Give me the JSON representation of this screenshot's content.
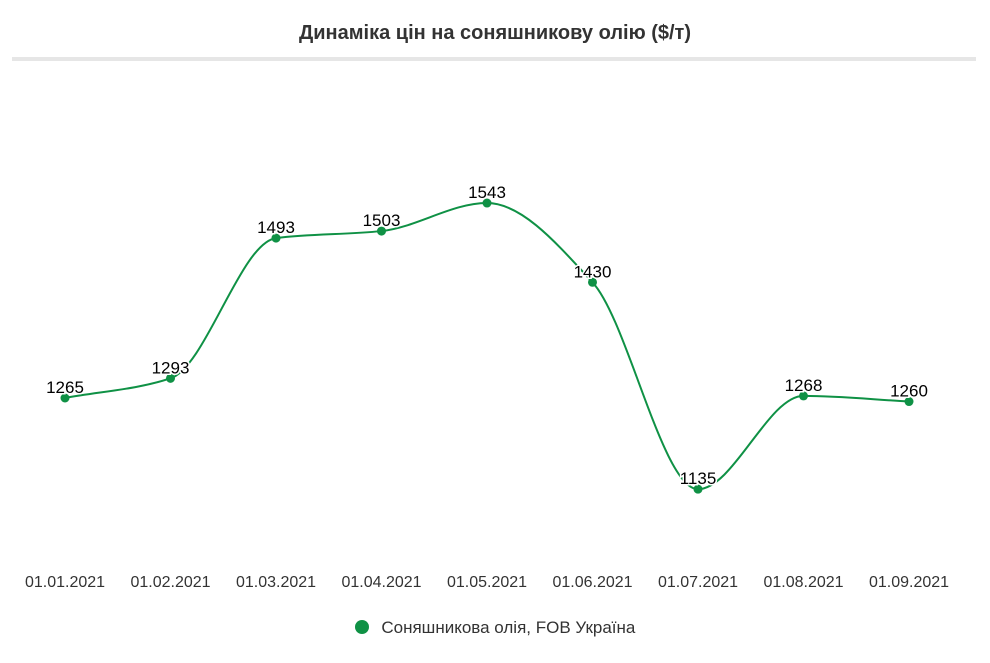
{
  "chart_data": {
    "type": "line",
    "title": "Динаміка цін на соняшникову олію ($/т)",
    "categories": [
      "01.01.2021",
      "01.02.2021",
      "01.03.2021",
      "01.04.2021",
      "01.05.2021",
      "01.06.2021",
      "01.07.2021",
      "01.08.2021",
      "01.09.2021"
    ],
    "series": [
      {
        "name": "Соняшникова олія, FOB Україна",
        "values": [
          1265,
          1293,
          1493,
          1503,
          1543,
          1430,
          1135,
          1268,
          1260
        ],
        "color": "#0f9145"
      }
    ],
    "grid": false,
    "legend": "bottom-center",
    "data_labels": true
  }
}
